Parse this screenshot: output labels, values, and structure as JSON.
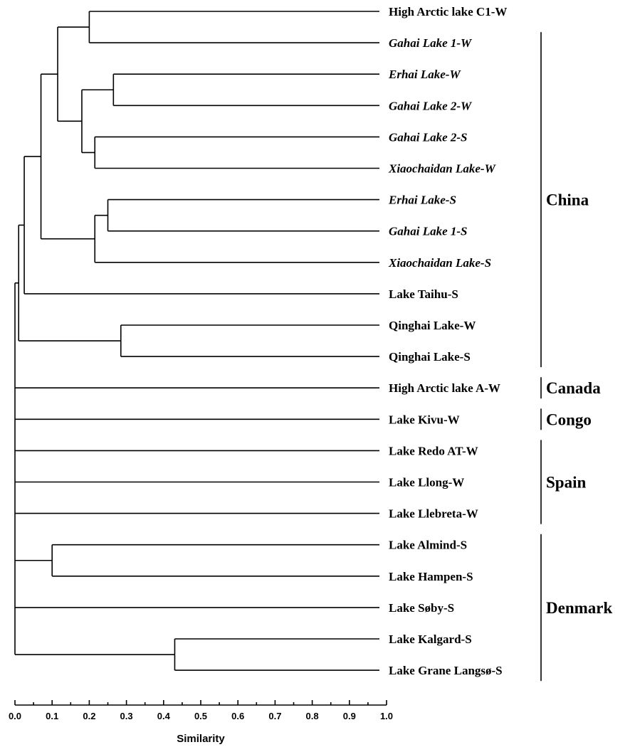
{
  "chart_data": {
    "type": "dendrogram",
    "xlabel": "Similarity",
    "xlim": [
      0.0,
      1.0
    ],
    "xticks": [
      "0.0",
      "0.1",
      "0.2",
      "0.3",
      "0.4",
      "0.5",
      "0.6",
      "0.7",
      "0.8",
      "0.9",
      "1.0"
    ],
    "leaves": [
      {
        "label": "High Arctic  lake  C1-W",
        "italic": false
      },
      {
        "label": "Gahai  Lake 1-W",
        "italic": true
      },
      {
        "label": "Erhai Lake-W",
        "italic": true
      },
      {
        "label": "Gahai Lake 2-W",
        "italic": true
      },
      {
        "label": "Gahai Lake 2-S",
        "italic": true
      },
      {
        "label": "Xiaochaidan Lake-W",
        "italic": true
      },
      {
        "label": "Erhai Lake-S",
        "italic": true
      },
      {
        "label": "Gahai Lake 1-S",
        "italic": true
      },
      {
        "label": "Xiaochaidan Lake-S",
        "italic": true
      },
      {
        "label": "Lake Taihu-S",
        "italic": false
      },
      {
        "label": "Qinghai Lake-W",
        "italic": false
      },
      {
        "label": "Qinghai Lake-S",
        "italic": false
      },
      {
        "label": "High Arctic lake A-W",
        "italic": false
      },
      {
        "label": "Lake Kivu-W",
        "italic": false
      },
      {
        "label": "Lake Redo AT-W",
        "italic": false
      },
      {
        "label": "Lake Llong-W",
        "italic": false
      },
      {
        "label": "Lake Llebreta-W",
        "italic": false
      },
      {
        "label": "Lake Almind-S",
        "italic": false
      },
      {
        "label": "Lake Hampen-S",
        "italic": false
      },
      {
        "label": "Lake Søby-S",
        "italic": false
      },
      {
        "label": "Lake Kalgard-S",
        "italic": false
      },
      {
        "label": "Lake Grane Langsø-S",
        "italic": false
      }
    ],
    "merges": [
      {
        "id": "c1",
        "children": [
          0,
          1
        ],
        "similarity": 0.2
      },
      {
        "id": "c2",
        "children": [
          2,
          3
        ],
        "similarity": 0.265
      },
      {
        "id": "c3",
        "children": [
          4,
          5
        ],
        "similarity": 0.215
      },
      {
        "id": "c4",
        "children": [
          "c2",
          "c3"
        ],
        "similarity": 0.18
      },
      {
        "id": "c5",
        "children": [
          "c1",
          "c4"
        ],
        "similarity": 0.115
      },
      {
        "id": "c6",
        "children": [
          6,
          7
        ],
        "similarity": 0.25
      },
      {
        "id": "c7",
        "children": [
          "c6",
          8
        ],
        "similarity": 0.215
      },
      {
        "id": "c8",
        "children": [
          "c5",
          "c7"
        ],
        "similarity": 0.07
      },
      {
        "id": "c9",
        "children": [
          "c8",
          9
        ],
        "similarity": 0.025
      },
      {
        "id": "c10",
        "children": [
          10,
          11
        ],
        "similarity": 0.285
      },
      {
        "id": "c11",
        "children": [
          "c9",
          "c10"
        ],
        "similarity": 0.01
      },
      {
        "id": "c12",
        "children": [
          17,
          18
        ],
        "similarity": 0.1
      },
      {
        "id": "c13",
        "children": [
          20,
          21
        ],
        "similarity": 0.43
      },
      {
        "id": "root",
        "children": [
          "c11",
          12,
          13,
          14,
          15,
          16,
          "c12",
          19,
          "c13"
        ],
        "similarity": 0.0
      }
    ],
    "groups": [
      {
        "label": "China",
        "first": 1,
        "last": 11
      },
      {
        "label": "Canada",
        "first": 12,
        "last": 12
      },
      {
        "label": "Congo",
        "first": 13,
        "last": 13
      },
      {
        "label": "Spain",
        "first": 14,
        "last": 16
      },
      {
        "label": "Denmark",
        "first": 17,
        "last": 21
      }
    ]
  }
}
